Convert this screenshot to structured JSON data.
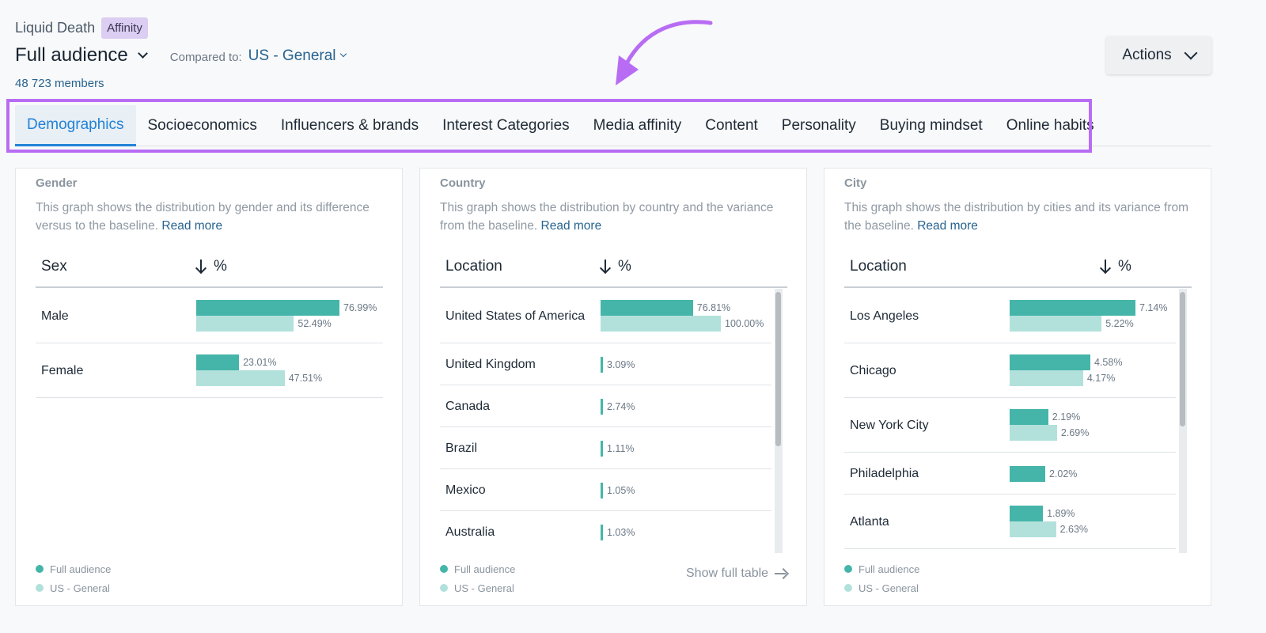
{
  "header": {
    "brand": "Liquid Death",
    "badge": "Affinity",
    "audience": "Full audience",
    "compared_label": "Compared to:",
    "compared_value": "US - General",
    "members": "48 723 members",
    "actions_label": "Actions"
  },
  "tabs": [
    {
      "label": "Demographics",
      "active": true
    },
    {
      "label": "Socioeconomics"
    },
    {
      "label": "Influencers & brands"
    },
    {
      "label": "Interest Categories"
    },
    {
      "label": "Media affinity"
    },
    {
      "label": "Content"
    },
    {
      "label": "Personality"
    },
    {
      "label": "Buying mindset"
    },
    {
      "label": "Online habits"
    }
  ],
  "colors": {
    "full_audience": "#45b5aa",
    "baseline": "#b2e1dc",
    "highlight": "#b86cf4",
    "active_tab": "#2282d6"
  },
  "cards": {
    "gender": {
      "title": "Gender",
      "desc": "This graph shows the distribution by gender and its difference versus to the baseline.",
      "read_more": "Read more",
      "col1": "Sex",
      "col2": "%",
      "rows": [
        {
          "label": "Male",
          "full": "76.99%",
          "base": "52.49%",
          "full_value": 76.99,
          "base_value": 52.49
        },
        {
          "label": "Female",
          "full": "23.01%",
          "base": "47.51%",
          "full_value": 23.01,
          "base_value": 47.51
        }
      ]
    },
    "country": {
      "title": "Country",
      "desc": "This graph shows the distribution by country and the variance from the baseline.",
      "read_more": "Read more",
      "col1": "Location",
      "col2": "%",
      "show_full": "Show full table",
      "rows": [
        {
          "label": "United States of America",
          "full": "76.81%",
          "base": "100.00%",
          "full_value": 76.81,
          "base_value": 100
        },
        {
          "label": "United Kingdom",
          "full": "3.09%",
          "full_value": 3.09
        },
        {
          "label": "Canada",
          "full": "2.74%",
          "full_value": 2.74
        },
        {
          "label": "Brazil",
          "full": "1.11%",
          "full_value": 1.11
        },
        {
          "label": "Mexico",
          "full": "1.05%",
          "full_value": 1.05
        },
        {
          "label": "Australia",
          "full": "1.03%",
          "full_value": 1.03
        }
      ]
    },
    "city": {
      "title": "City",
      "desc": "This graph shows the distribution by cities and its variance from the baseline.",
      "read_more": "Read more",
      "col1": "Location",
      "col2": "%",
      "rows": [
        {
          "label": "Los Angeles",
          "full": "7.14%",
          "base": "5.22%",
          "full_value": 7.14,
          "base_value": 5.22
        },
        {
          "label": "Chicago",
          "full": "4.58%",
          "base": "4.17%",
          "full_value": 4.58,
          "base_value": 4.17
        },
        {
          "label": "New York City",
          "full": "2.19%",
          "base": "2.69%",
          "full_value": 2.19,
          "base_value": 2.69
        },
        {
          "label": "Philadelphia",
          "full": "2.02%",
          "full_value": 2.02
        },
        {
          "label": "Atlanta",
          "full": "1.89%",
          "base": "2.63%",
          "full_value": 1.89,
          "base_value": 2.63
        }
      ]
    }
  },
  "legend": {
    "full": "Full audience",
    "base": "US - General"
  }
}
